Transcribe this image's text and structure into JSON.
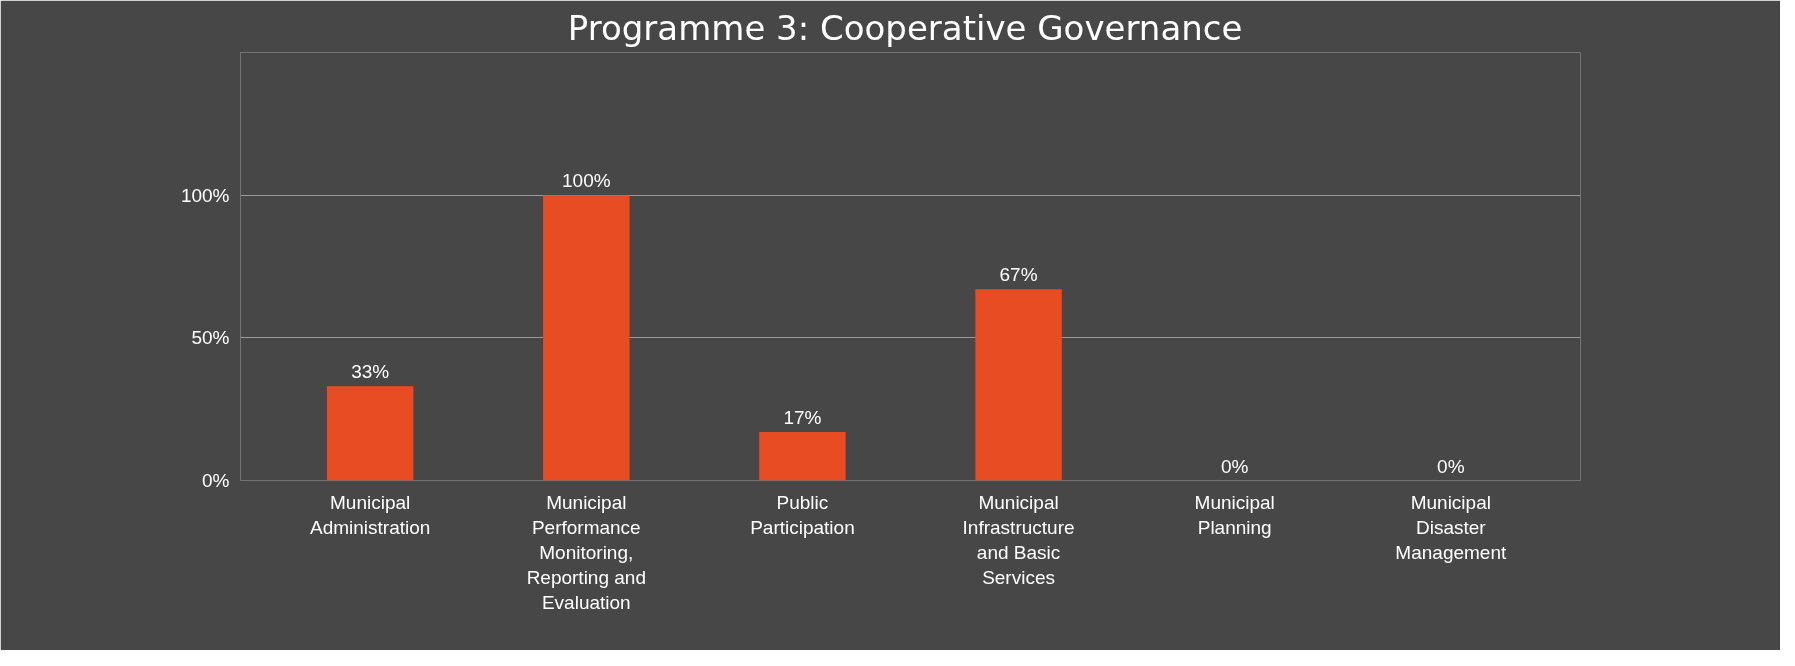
{
  "chart_data": {
    "type": "bar",
    "title": "Programme 3:  Cooperative Governance",
    "categories": [
      "Municipal Administration",
      "Municipal Performance Monitoring, Reporting and Evaluation",
      "Public Participation",
      "Municipal Infrastructure and Basic Services",
      "Municipal Planning",
      "Municipal Disaster Management"
    ],
    "values": [
      33,
      100,
      17,
      67,
      0,
      0
    ],
    "color": "#e84c22",
    "value_labels": [
      "33%",
      "100%",
      "17%",
      "67%",
      "0%",
      "0%"
    ],
    "ylim": [
      0,
      150
    ],
    "yticks": [
      {
        "value": 0,
        "label": "0%"
      },
      {
        "value": 50,
        "label": "50%"
      },
      {
        "value": 100,
        "label": "100%"
      },
      {
        "value": 150,
        "label": null
      }
    ],
    "grid": "y"
  }
}
